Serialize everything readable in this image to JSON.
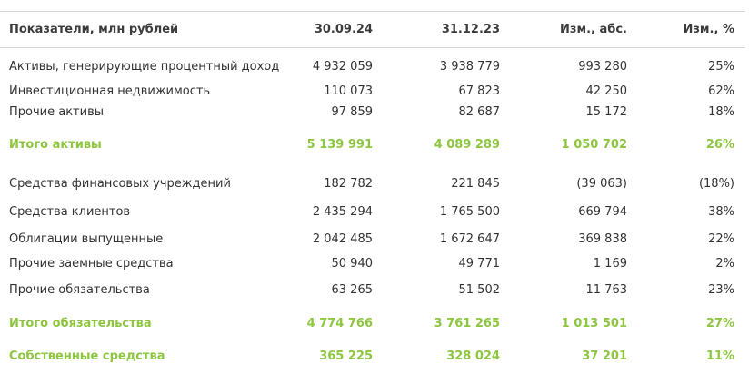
{
  "table": {
    "header": [
      "Показатели, млн рублей",
      "30.09.24",
      "31.12.23",
      "Изм., абс.",
      "Изм., %"
    ],
    "rows": [
      {
        "cells": [
          "Активы, генерирующие процентный доход",
          "4 932 059",
          "3 938 779",
          "993 280",
          "25%"
        ]
      },
      {
        "cells": [
          "Инвестиционная недвижимость",
          "110 073",
          "67 823",
          "42 250",
          "62%"
        ]
      },
      {
        "cells": [
          "Прочие активы",
          "97 859",
          "82 687",
          "15 172",
          "18%"
        ]
      },
      {
        "cells": [
          "Итого активы",
          "5 139 991",
          "4 089 289",
          "1 050 702",
          "26%"
        ],
        "style": "total"
      },
      {
        "cells": [
          "Средства финансовых учреждений",
          "182 782",
          "221 845",
          "(39 063)",
          "(18%)"
        ]
      },
      {
        "cells": [
          "Средства клиентов",
          "2 435 294",
          "1 765 500",
          "669 794",
          "38%"
        ]
      },
      {
        "cells": [
          "Облигации выпущенные",
          "2 042 485",
          "1 672 647",
          "369 838",
          "22%"
        ]
      },
      {
        "cells": [
          "Прочие заемные средства",
          "50 940",
          "49 771",
          "1 169",
          "2%"
        ]
      },
      {
        "cells": [
          "Прочие обязательства",
          "63 265",
          "51 502",
          "11 763",
          "23%"
        ]
      },
      {
        "cells": [
          "Итого обязательства",
          "4 774 766",
          "3 761 265",
          "1 013 501",
          "27%"
        ],
        "style": "total"
      },
      {
        "cells": [
          "Собственные средства",
          "365 225",
          "328 024",
          "37 201",
          "11%"
        ],
        "style": "total"
      }
    ]
  }
}
